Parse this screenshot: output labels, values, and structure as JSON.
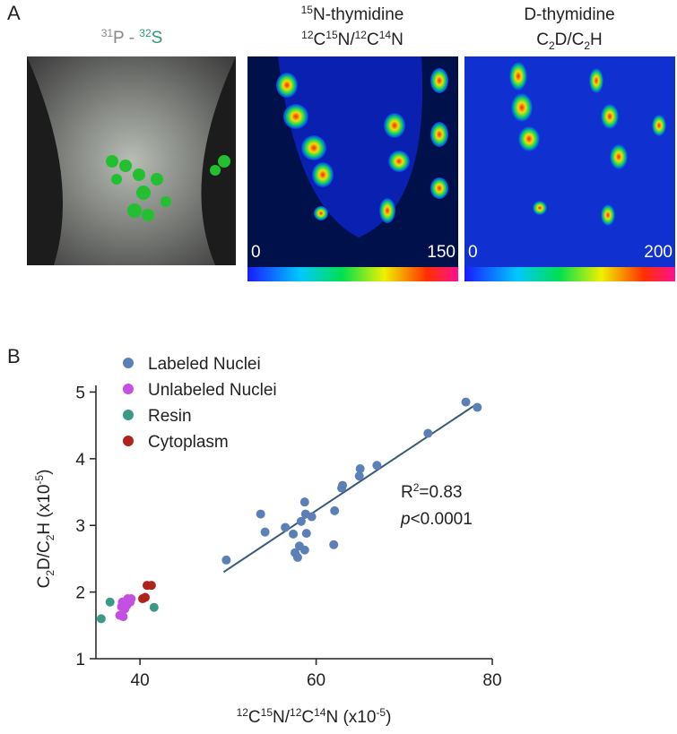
{
  "panel_a": {
    "label": "A",
    "images": [
      {
        "title_line1": [
          "31",
          "P - ",
          "32",
          "S"
        ]
      },
      {
        "title_line1": [
          "15",
          "N-thymidine"
        ],
        "title_line2": [
          "12",
          "C",
          "15",
          "N/",
          "12",
          "C",
          "14",
          "N"
        ],
        "scale": [
          0,
          150
        ]
      },
      {
        "title_line1": [
          "D-thymidine"
        ],
        "title_line2": [
          "C",
          "2",
          "D/C",
          "2",
          "H"
        ],
        "scale": [
          0,
          200
        ]
      }
    ]
  },
  "chart_data": {
    "type": "scatter",
    "label": "B",
    "x_label": [
      "12",
      "C",
      "15",
      "N/",
      "12",
      "C",
      "14",
      "N (x10",
      "-5",
      ")"
    ],
    "y_label": [
      "C",
      "2",
      "D/C",
      "2",
      "H (x10",
      "-5",
      ")"
    ],
    "xlim": [
      35,
      80
    ],
    "ylim": [
      1,
      5.1
    ],
    "xticks": [
      40,
      60,
      80
    ],
    "yticks": [
      1,
      2,
      3,
      4,
      5
    ],
    "series": [
      {
        "name": "Labeled Nuclei",
        "color": "#5b80b8",
        "x": [
          49.8,
          53.7,
          54.2,
          56.5,
          57.4,
          57.6,
          57.9,
          58.1,
          58.3,
          58.7,
          58.8,
          58.7,
          58.9,
          59.5,
          62.1,
          62.0,
          62.9,
          63.0,
          64.9,
          65.0,
          66.9,
          72.7,
          77.0,
          78.3
        ],
        "values": [
          2.48,
          3.17,
          2.9,
          2.97,
          2.87,
          2.59,
          2.52,
          2.69,
          3.06,
          3.35,
          3.17,
          2.63,
          2.88,
          3.13,
          3.22,
          2.71,
          3.56,
          3.6,
          3.74,
          3.85,
          3.9,
          4.38,
          4.85,
          4.77
        ]
      },
      {
        "name": "Unlabeled Nuclei",
        "color": "#c54fe0",
        "x": [
          38.0,
          38.6,
          38.9,
          37.9,
          38.3,
          37.7,
          38.1,
          39.0,
          38.5
        ],
        "values": [
          1.85,
          1.9,
          1.85,
          1.78,
          1.75,
          1.65,
          1.63,
          1.9,
          1.8
        ]
      },
      {
        "name": "Resin",
        "color": "#3a9a85",
        "x": [
          35.6,
          36.6,
          41.6
        ],
        "values": [
          1.6,
          1.85,
          1.77
        ]
      },
      {
        "name": "Cytoplasm",
        "color": "#b0221c",
        "x": [
          40.3,
          40.6,
          40.8,
          41.3
        ],
        "values": [
          1.9,
          1.92,
          2.1,
          2.1
        ]
      }
    ],
    "fit_line": {
      "x": [
        49.5,
        78
      ],
      "values": [
        2.3,
        4.8
      ]
    },
    "annotation": {
      "r2": [
        "R",
        "2",
        "=0.83"
      ],
      "p": [
        "p",
        "<0.0001"
      ]
    }
  }
}
